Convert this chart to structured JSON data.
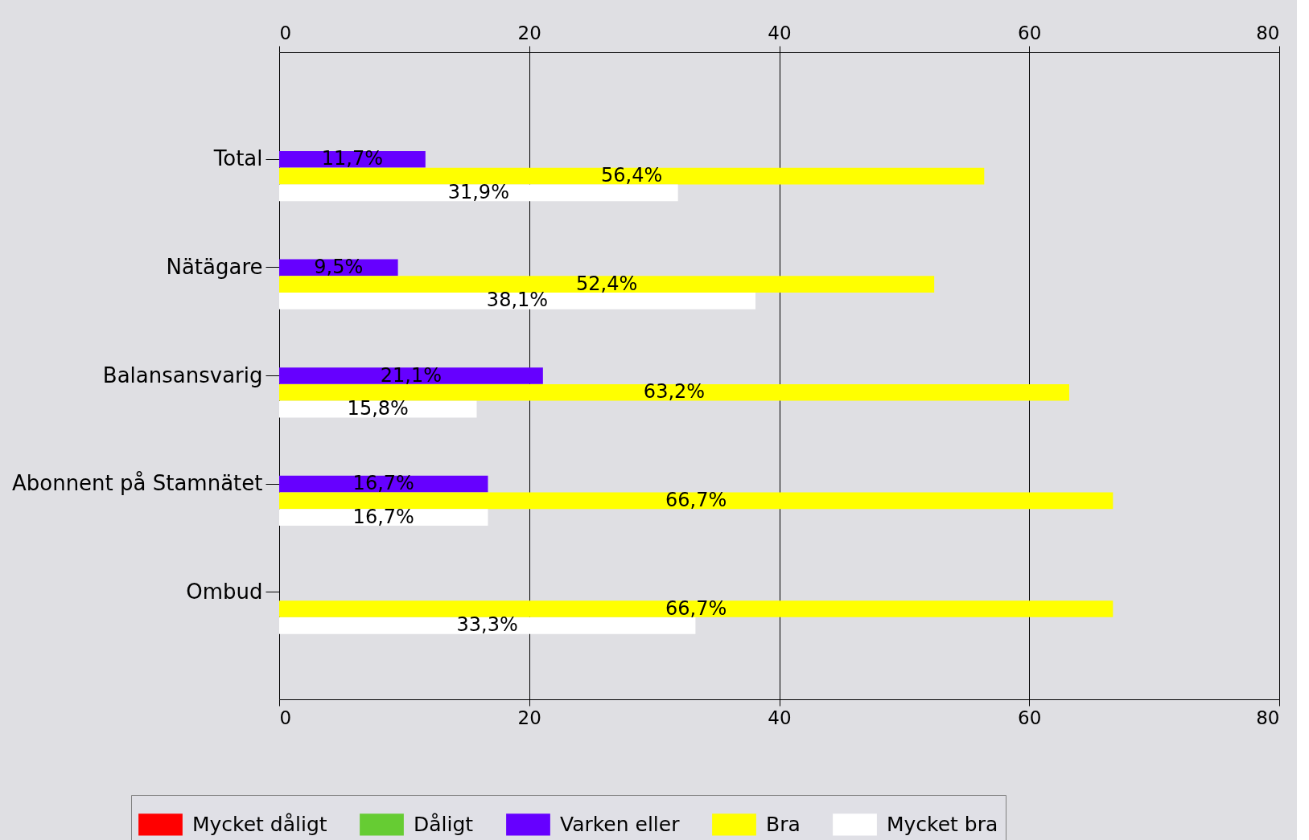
{
  "chart_data": {
    "type": "bar",
    "orientation": "horizontal",
    "categories": [
      "Total",
      "Nätägare",
      "Balansansvarig",
      "Abonnent på Stamnätet",
      "Ombud"
    ],
    "series": [
      {
        "name": "Mycket dåligt",
        "color": "#ff0000",
        "values": [
          0,
          0,
          0,
          0,
          0
        ],
        "value_labels": [
          null,
          null,
          null,
          null,
          null
        ]
      },
      {
        "name": "Dåligt",
        "color": "#66cc33",
        "values": [
          0,
          0,
          0,
          0,
          0
        ],
        "value_labels": [
          null,
          null,
          null,
          null,
          null
        ]
      },
      {
        "name": "Varken eller",
        "color": "#6600ff",
        "values": [
          11.7,
          9.5,
          21.1,
          16.7,
          0
        ],
        "value_labels": [
          "11,7%",
          "9,5%",
          "21,1%",
          "16,7%",
          null
        ]
      },
      {
        "name": "Bra",
        "color": "#ffff00",
        "values": [
          56.4,
          52.4,
          63.2,
          66.7,
          66.7
        ],
        "value_labels": [
          "56,4%",
          "52,4%",
          "63,2%",
          "66,7%",
          "66,7%"
        ]
      },
      {
        "name": "Mycket bra",
        "color": "#ffffff",
        "values": [
          31.9,
          38.1,
          15.8,
          16.7,
          33.3
        ],
        "value_labels": [
          "31,9%",
          "38,1%",
          "15,8%",
          "16,7%",
          "33,3%"
        ]
      }
    ],
    "xlim": [
      0,
      80
    ],
    "xticks": [
      0,
      20,
      40,
      60,
      80
    ],
    "x2lim": [
      0,
      80
    ],
    "x2ticks": [
      0,
      20,
      40,
      60,
      80
    ],
    "grid": "x",
    "legend": "bottom"
  }
}
